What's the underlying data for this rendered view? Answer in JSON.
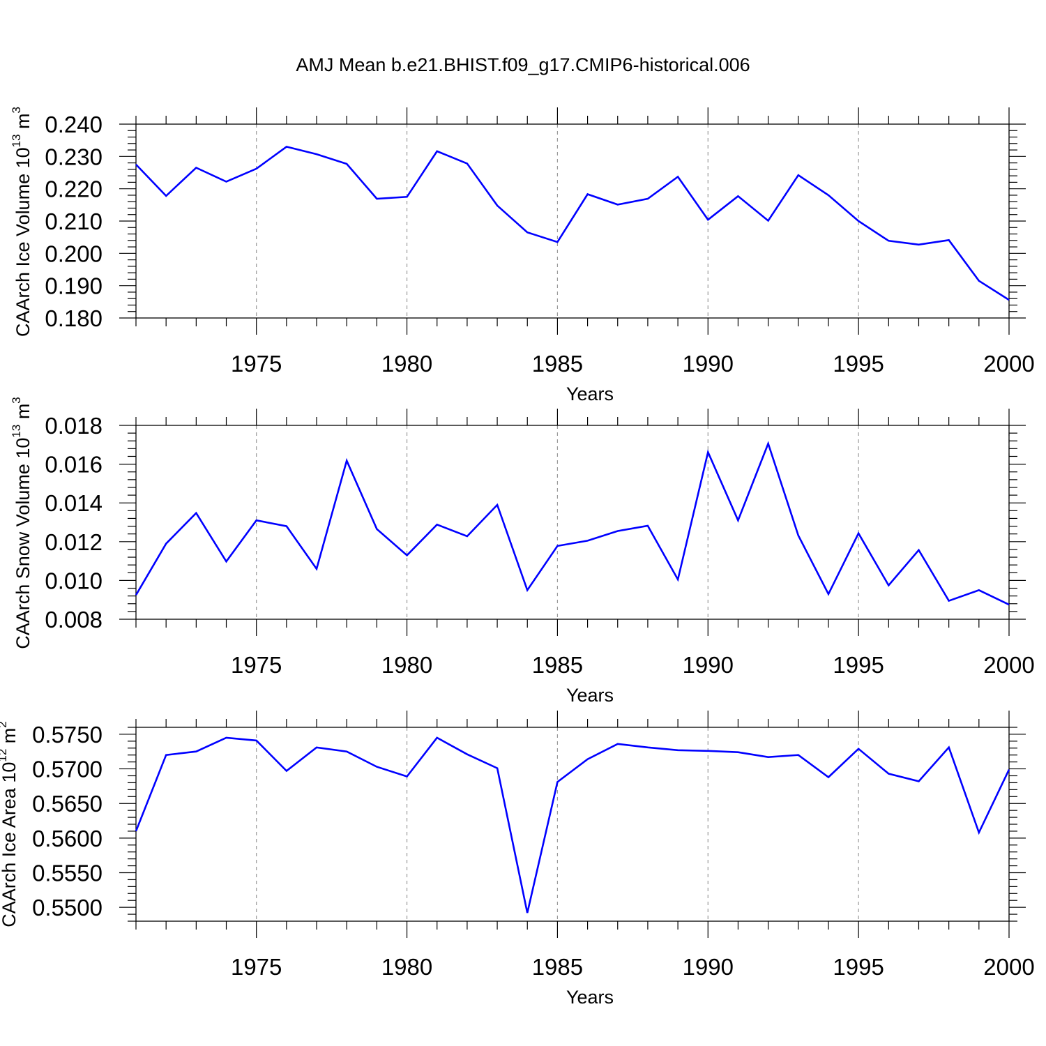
{
  "title": "AMJ Mean b.e21.BHIST.f09_g17.CMIP6-historical.006",
  "colors": {
    "line": "#0000ff",
    "axis": "#000000",
    "grid": "#999999"
  },
  "chart_data": [
    {
      "type": "line",
      "xlabel": "Years",
      "ylabel": {
        "text": "CAArch Ice Volume 10",
        "sup": "13",
        "unit": " m",
        "unit_sup": "3"
      },
      "xlim": [
        1971,
        2000
      ],
      "ylim": [
        0.18,
        0.24
      ],
      "xticks": [
        "1975",
        "1980",
        "1985",
        "1990",
        "1995",
        "2000"
      ],
      "yticks": [
        "0.180",
        "0.190",
        "0.200",
        "0.210",
        "0.220",
        "0.230",
        "0.240"
      ],
      "grid": "vertical dashed at major x ticks",
      "x": [
        1971,
        1972,
        1973,
        1974,
        1975,
        1976,
        1977,
        1978,
        1979,
        1980,
        1981,
        1982,
        1983,
        1984,
        1985,
        1986,
        1987,
        1988,
        1989,
        1990,
        1991,
        1992,
        1993,
        1994,
        1995,
        1996,
        1997,
        1998,
        1999,
        2000
      ],
      "series": [
        {
          "values": [
            0.2275,
            0.2178,
            0.2265,
            0.2222,
            0.2262,
            0.233,
            0.2307,
            0.2277,
            0.2169,
            0.2175,
            0.2316,
            0.2278,
            0.2148,
            0.2065,
            0.2035,
            0.2183,
            0.2151,
            0.2169,
            0.2237,
            0.2104,
            0.2177,
            0.2101,
            0.2242,
            0.218,
            0.21,
            0.2039,
            0.2027,
            0.2041,
            0.1915,
            0.1856
          ]
        }
      ]
    },
    {
      "type": "line",
      "xlabel": "Years",
      "ylabel": {
        "text": "CAArch Snow Volume 10",
        "sup": "13",
        "unit": " m",
        "unit_sup": "3"
      },
      "xlim": [
        1971,
        2000
      ],
      "ylim": [
        0.008,
        0.018
      ],
      "xticks": [
        "1975",
        "1980",
        "1985",
        "1990",
        "1995",
        "2000"
      ],
      "yticks": [
        "0.008",
        "0.010",
        "0.012",
        "0.014",
        "0.016",
        "0.018"
      ],
      "grid": "vertical dashed at major x ticks",
      "x": [
        1971,
        1972,
        1973,
        1974,
        1975,
        1976,
        1977,
        1978,
        1979,
        1980,
        1981,
        1982,
        1983,
        1984,
        1985,
        1986,
        1987,
        1988,
        1989,
        1990,
        1991,
        1992,
        1993,
        1994,
        1995,
        1996,
        1997,
        1998,
        1999,
        2000
      ],
      "series": [
        {
          "values": [
            0.00925,
            0.0119,
            0.01348,
            0.01098,
            0.0131,
            0.0128,
            0.0106,
            0.01618,
            0.01265,
            0.0113,
            0.01288,
            0.01228,
            0.0139,
            0.0095,
            0.01178,
            0.01205,
            0.01255,
            0.01282,
            0.01005,
            0.01662,
            0.0131,
            0.01706,
            0.01232,
            0.0093,
            0.01243,
            0.00975,
            0.01157,
            0.00895,
            0.0095,
            0.00875
          ]
        }
      ]
    },
    {
      "type": "line",
      "xlabel": "Years",
      "ylabel": {
        "text": "CAArch Ice Area 10",
        "sup": "12",
        "unit": " m",
        "unit_sup": "2"
      },
      "xlim": [
        1971,
        2000
      ],
      "ylim": [
        0.548,
        0.576
      ],
      "xticks": [
        "1975",
        "1980",
        "1985",
        "1990",
        "1995",
        "2000"
      ],
      "yticks": [
        "0.5500",
        "0.5550",
        "0.5600",
        "0.5650",
        "0.5700",
        "0.5750"
      ],
      "grid": "vertical dashed at major x ticks",
      "x": [
        1971,
        1972,
        1973,
        1974,
        1975,
        1976,
        1977,
        1978,
        1979,
        1980,
        1981,
        1982,
        1983,
        1984,
        1985,
        1986,
        1987,
        1988,
        1989,
        1990,
        1991,
        1992,
        1993,
        1994,
        1995,
        1996,
        1997,
        1998,
        1999,
        2000
      ],
      "series": [
        {
          "values": [
            0.561,
            0.572,
            0.5725,
            0.5745,
            0.5741,
            0.5697,
            0.5731,
            0.5725,
            0.5703,
            0.5689,
            0.5745,
            0.5721,
            0.5701,
            0.5492,
            0.5681,
            0.5714,
            0.5736,
            0.5731,
            0.5727,
            0.5726,
            0.5724,
            0.5717,
            0.572,
            0.5688,
            0.5729,
            0.5693,
            0.5682,
            0.5731,
            0.5608,
            0.5699
          ]
        }
      ]
    }
  ]
}
